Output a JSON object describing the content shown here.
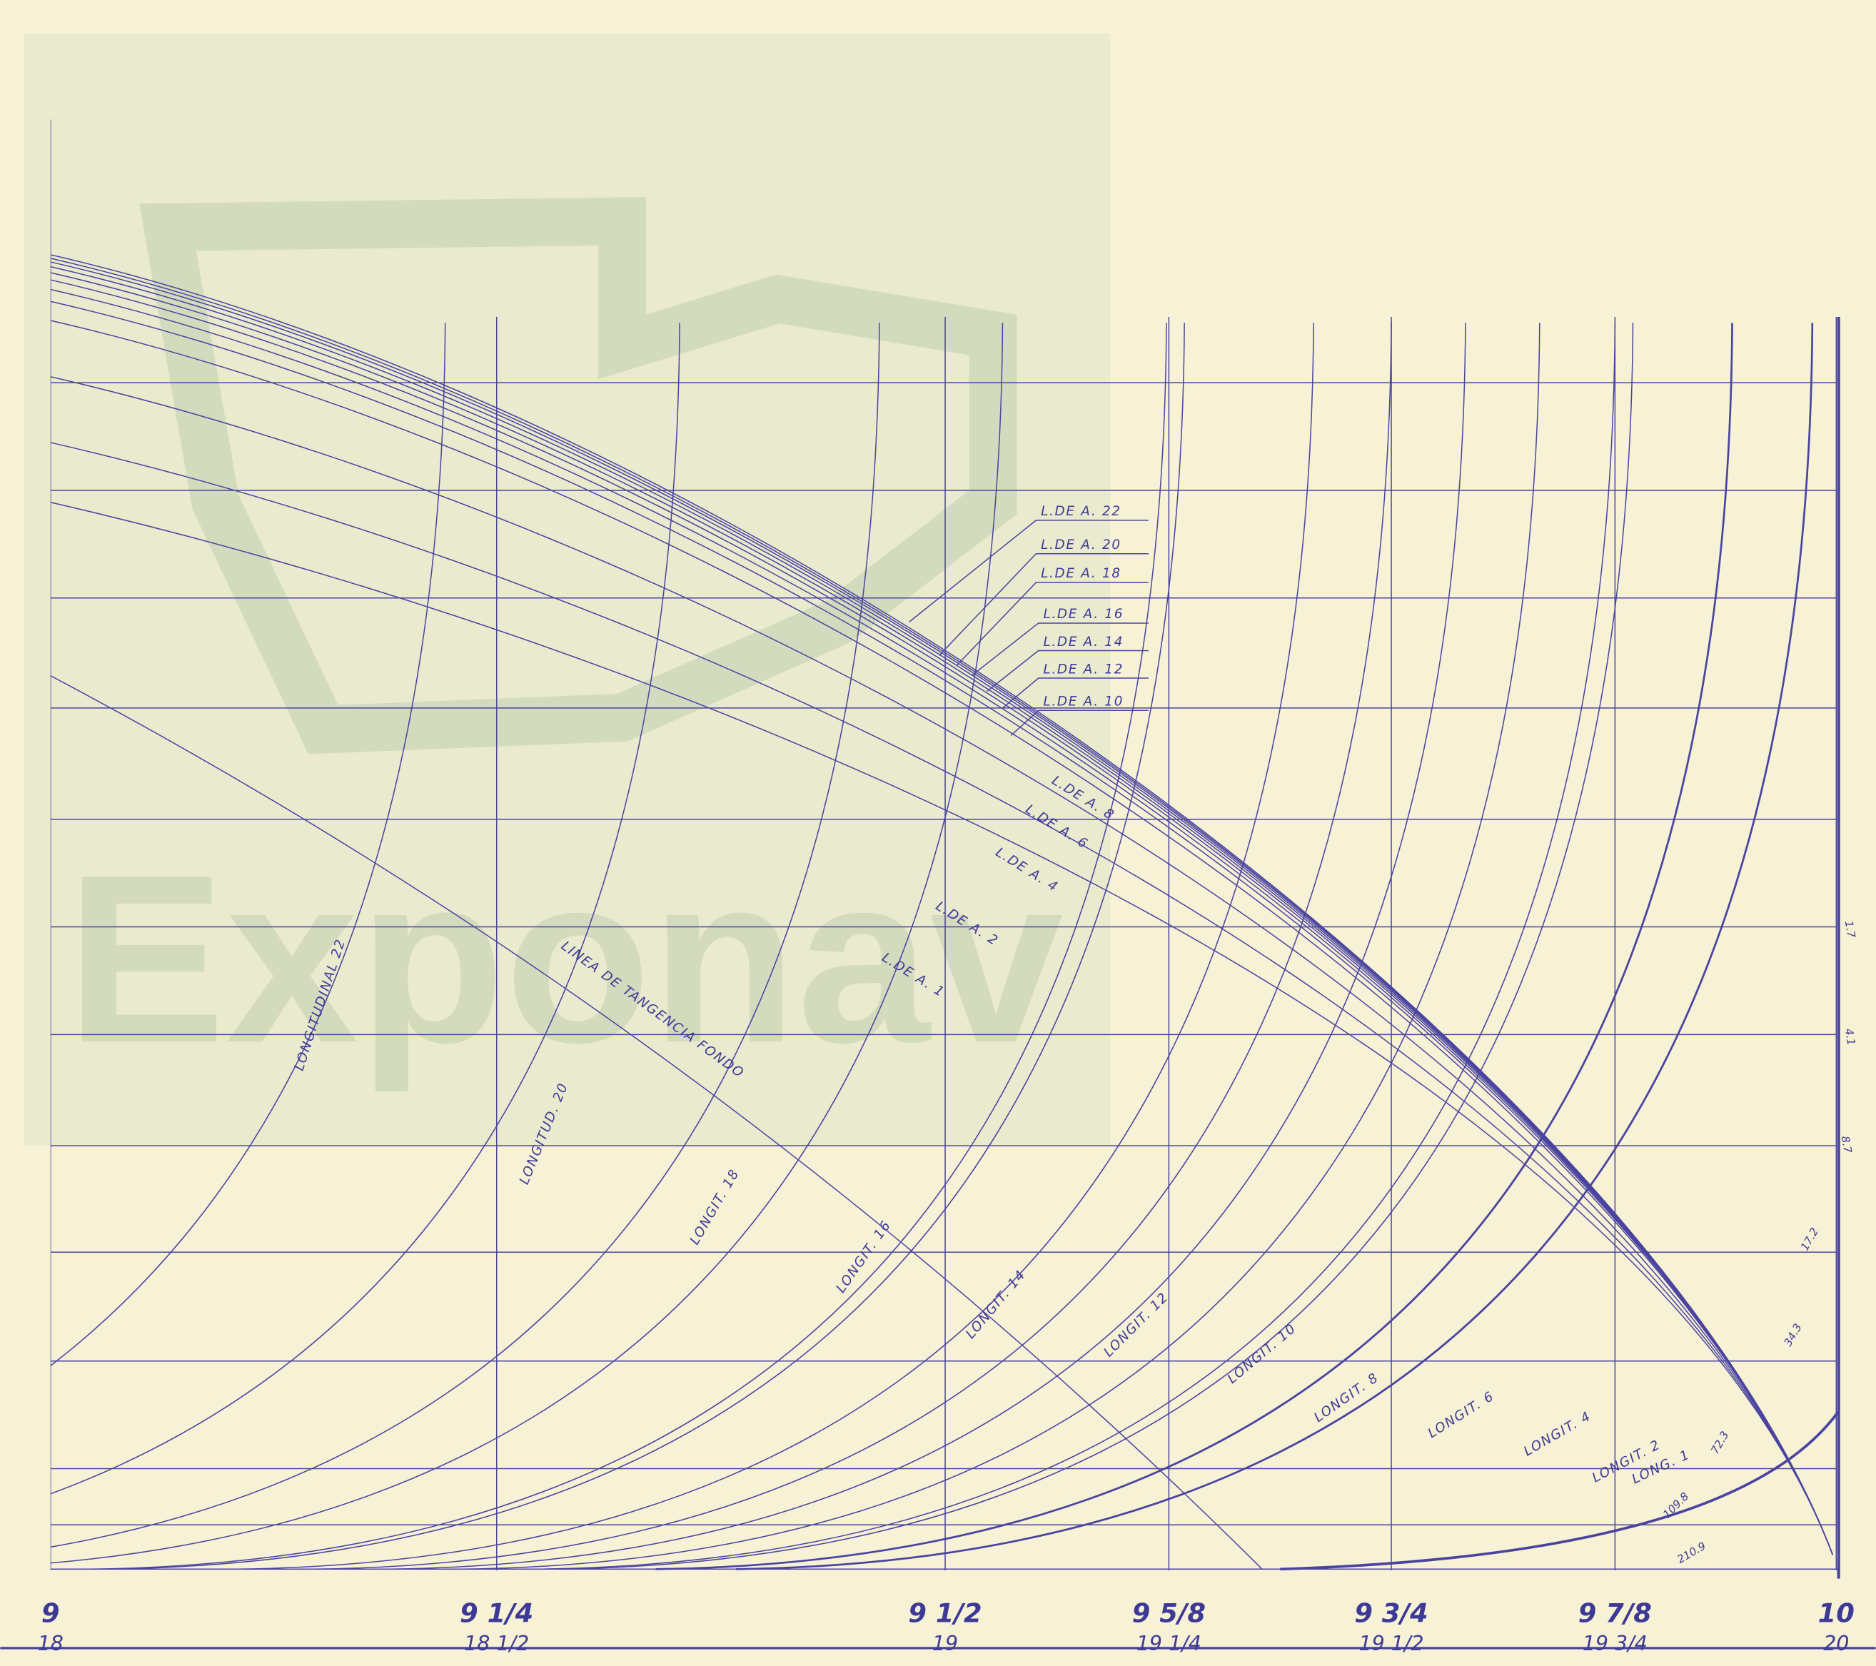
{
  "watermark": "Exponav",
  "waterlines": [
    {
      "label": "L.DE A. 22"
    },
    {
      "label": "L.DE A. 20"
    },
    {
      "label": "L.DE A. 18"
    },
    {
      "label": "L.DE A. 16"
    },
    {
      "label": "L.DE A. 14"
    },
    {
      "label": "L.DE A. 12"
    },
    {
      "label": "L.DE A. 10"
    },
    {
      "label": "L.DE A. 8"
    },
    {
      "label": "L.DE A. 6"
    },
    {
      "label": "L.DE A. 4"
    },
    {
      "label": "L.DE A. 2"
    },
    {
      "label": "L.DE A. 1"
    }
  ],
  "tangent_line": "LINEA DE TANGENCIA FONDO",
  "longitudinals": [
    {
      "label": "LONGITUDINAL 22"
    },
    {
      "label": "LONGITUD. 20"
    },
    {
      "label": "LONGIT. 18"
    },
    {
      "label": "LONGIT. 16"
    },
    {
      "label": "LONGIT. 14"
    },
    {
      "label": "LONGIT. 12"
    },
    {
      "label": "LONGIT. 10"
    },
    {
      "label": "LONGIT. 8"
    },
    {
      "label": "LONGIT. 6"
    },
    {
      "label": "LONGIT. 4"
    },
    {
      "label": "LONGIT. 2"
    },
    {
      "label": "LONG. 1"
    }
  ],
  "stations": [
    {
      "top": "9",
      "bottom": "18"
    },
    {
      "top": "9 1/4",
      "bottom": "18 1/2"
    },
    {
      "top": "9 1/2",
      "bottom": "19"
    },
    {
      "top": "9 5/8",
      "bottom": "19 1/4"
    },
    {
      "top": "9 3/4",
      "bottom": "19 1/2"
    },
    {
      "top": "9 7/8",
      "bottom": "19 3/4"
    },
    {
      "top": "10",
      "bottom": "20"
    }
  ],
  "offsets": [
    "1.7",
    "4.1",
    "8.7",
    "17.2",
    "34.3",
    "72.3",
    "109.8",
    "210.9"
  ]
}
